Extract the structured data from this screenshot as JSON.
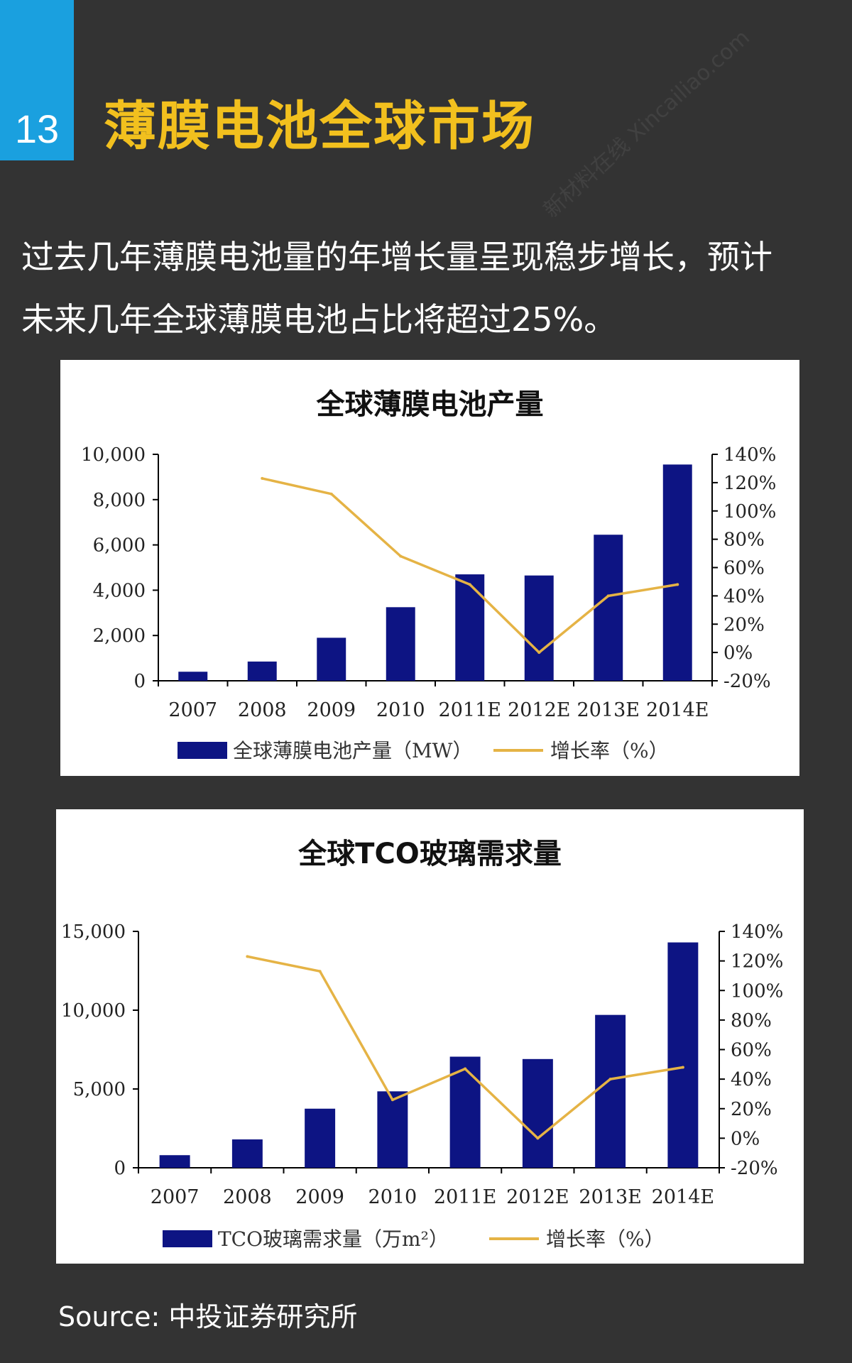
{
  "header": {
    "number": "13",
    "title": "薄膜电池全球市场"
  },
  "intro": {
    "line1": "过去几年薄膜电池量的年增长量呈现稳步增长，预计",
    "line2": "未来几年全球薄膜电池占比将超过25%。"
  },
  "watermark": {
    "cn": "新材料在线",
    "en": "Xincailiao.com"
  },
  "colors": {
    "bar": "#0d1483",
    "line": "#e5b345",
    "accent": "#1aa0df",
    "title": "#f2c01e"
  },
  "chart_data": [
    {
      "type": "bar+line",
      "title": "全球薄膜电池产量",
      "categories": [
        "2007",
        "2008",
        "2009",
        "2010",
        "2011E",
        "2012E",
        "2013E",
        "2014E"
      ],
      "series": [
        {
          "name": "全球薄膜电池产量（MW）",
          "type": "bar",
          "axis": "left",
          "values": [
            400,
            850,
            1900,
            3250,
            4700,
            4650,
            6450,
            9550
          ]
        },
        {
          "name": "增长率（%）",
          "type": "line",
          "axis": "right",
          "values": [
            null,
            123,
            112,
            68,
            48,
            0,
            40,
            48
          ]
        }
      ],
      "y_left": {
        "min": 0,
        "max": 10000,
        "ticks": [
          "0",
          "2,000",
          "4,000",
          "6,000",
          "8,000",
          "10,000"
        ],
        "tick_values": [
          0,
          2000,
          4000,
          6000,
          8000,
          10000
        ]
      },
      "y_right": {
        "min": -20,
        "max": 140,
        "ticks": [
          "-20%",
          "0%",
          "20%",
          "40%",
          "60%",
          "80%",
          "100%",
          "120%",
          "140%"
        ],
        "tick_values": [
          -20,
          0,
          20,
          40,
          60,
          80,
          100,
          120,
          140
        ]
      },
      "legend_placement": "bottom",
      "grid": false
    },
    {
      "type": "bar+line",
      "title": "全球TCO玻璃需求量",
      "categories": [
        "2007",
        "2008",
        "2009",
        "2010",
        "2011E",
        "2012E",
        "2013E",
        "2014E"
      ],
      "series": [
        {
          "name": "TCO玻璃需求量（万m²）",
          "type": "bar",
          "axis": "left",
          "values": [
            800,
            1800,
            3750,
            4850,
            7050,
            6900,
            9700,
            14300
          ]
        },
        {
          "name": "增长率（%）",
          "type": "line",
          "axis": "right",
          "values": [
            null,
            123,
            113,
            26,
            47,
            0,
            40,
            48
          ]
        }
      ],
      "y_left": {
        "min": 0,
        "max": 15000,
        "ticks": [
          "0",
          "5,000",
          "10,000",
          "15,000"
        ],
        "tick_values": [
          0,
          5000,
          10000,
          15000
        ]
      },
      "y_right": {
        "min": -20,
        "max": 140,
        "ticks": [
          "-20%",
          "0%",
          "20%",
          "40%",
          "60%",
          "80%",
          "100%",
          "120%",
          "140%"
        ],
        "tick_values": [
          -20,
          0,
          20,
          40,
          60,
          80,
          100,
          120,
          140
        ]
      },
      "legend_placement": "bottom",
      "grid": false
    }
  ],
  "source": {
    "label": "Source:",
    "value": "中投证券研究所"
  }
}
